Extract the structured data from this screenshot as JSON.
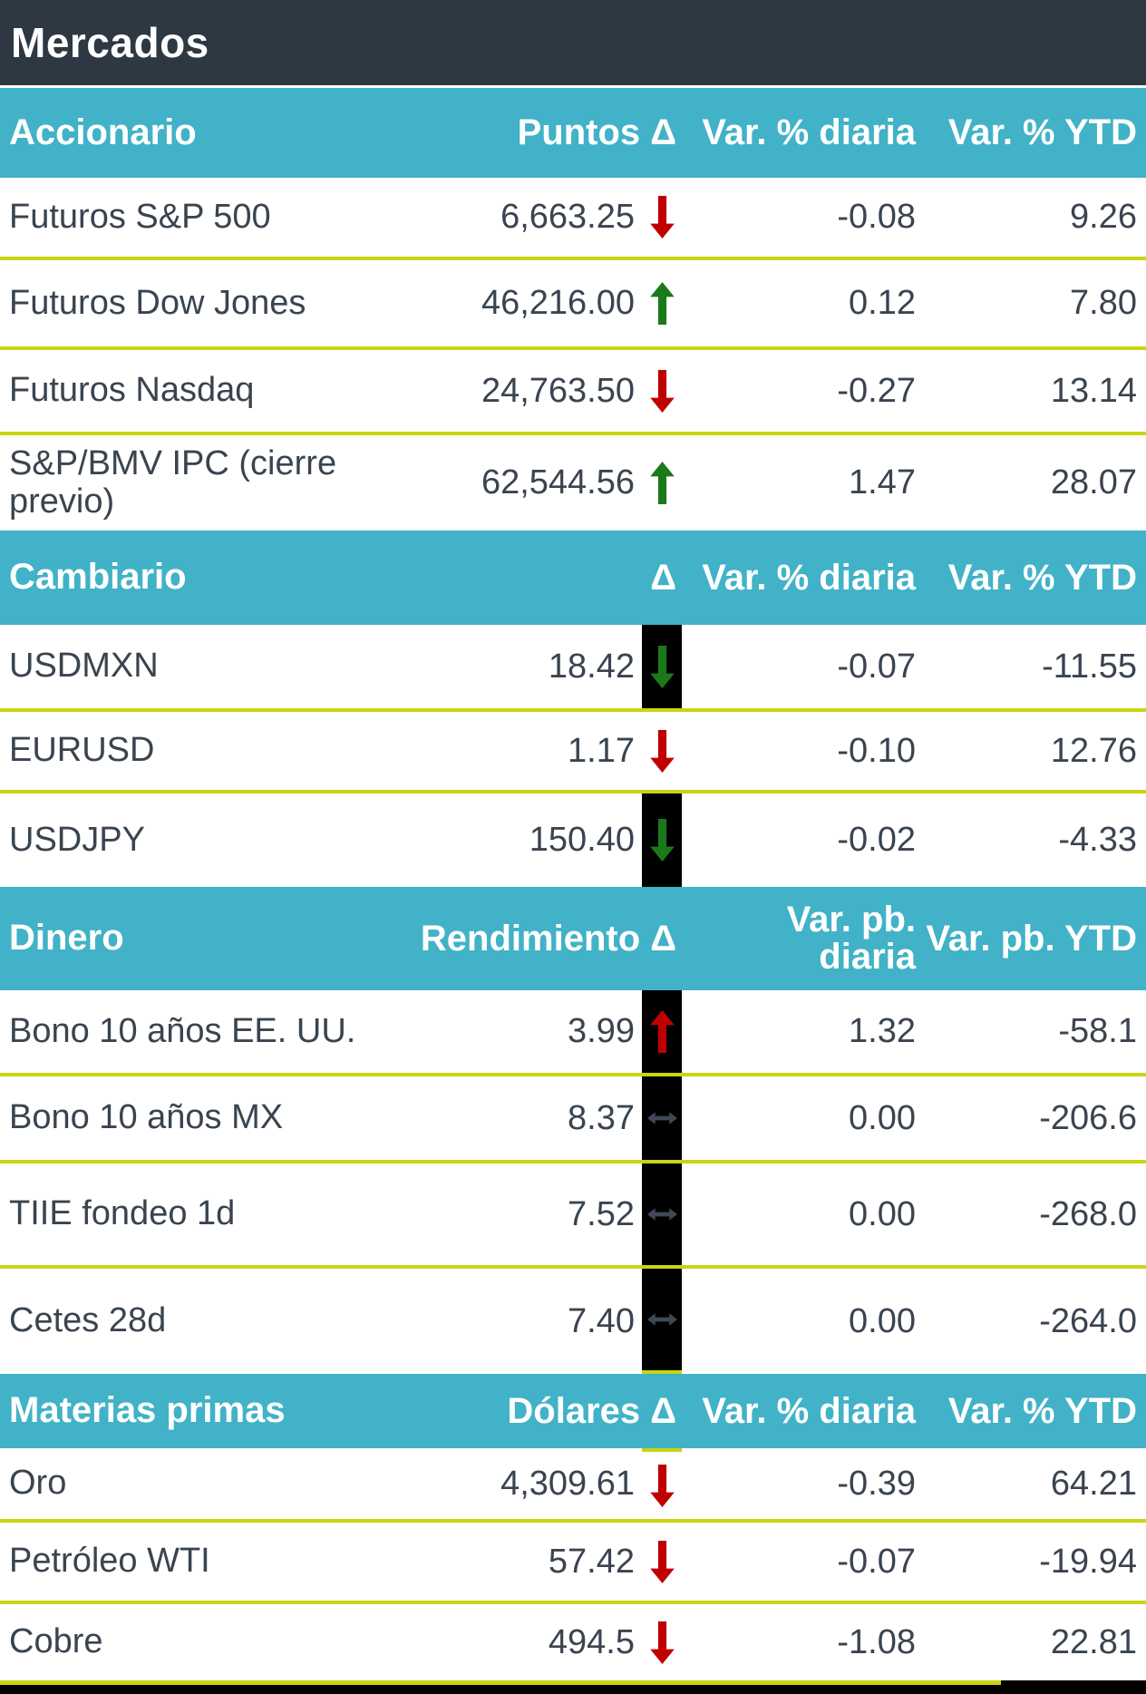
{
  "title": "Mercados",
  "colors": {
    "header_dark": "#2d3843",
    "section_teal": "#41b2c7",
    "separator": "#c9d511",
    "text": "#3a4450",
    "arrow_red": "#c00000",
    "arrow_green": "#1a7a1a",
    "arrow_flat": "#3f4a56",
    "bar_black": "#000000"
  },
  "sections": [
    {
      "title": "Accionario",
      "columns": {
        "value": "Puntos Δ",
        "daily": "Var. % diaria",
        "ytd": "Var. % YTD"
      },
      "rows": [
        {
          "name": "Futuros S&P 500",
          "value": "6,663.25",
          "daily": "-0.08",
          "ytd": "9.26",
          "delta": {
            "dir": "down",
            "tone": "red",
            "bar": false
          }
        },
        {
          "name": "Futuros Dow Jones",
          "value": "46,216.00",
          "daily": "0.12",
          "ytd": "7.80",
          "delta": {
            "dir": "up",
            "tone": "green",
            "bar": false
          }
        },
        {
          "name": "Futuros Nasdaq",
          "value": "24,763.50",
          "daily": "-0.27",
          "ytd": "13.14",
          "delta": {
            "dir": "down",
            "tone": "red",
            "bar": false
          }
        },
        {
          "name": "S&P/BMV IPC (cierre previo)",
          "value": "62,544.56",
          "daily": "1.47",
          "ytd": "28.07",
          "delta": {
            "dir": "up",
            "tone": "green",
            "bar": false
          }
        }
      ]
    },
    {
      "title": "Cambiario",
      "columns": {
        "value": "Δ",
        "daily": "Var. % diaria",
        "ytd": "Var. % YTD"
      },
      "rows": [
        {
          "name": "USDMXN",
          "value": "18.42",
          "daily": "-0.07",
          "ytd": "-11.55",
          "delta": {
            "dir": "down",
            "tone": "green",
            "bar": true
          }
        },
        {
          "name": "EURUSD",
          "value": "1.17",
          "daily": "-0.10",
          "ytd": "12.76",
          "delta": {
            "dir": "down",
            "tone": "red",
            "bar": false
          }
        },
        {
          "name": "USDJPY",
          "value": "150.40",
          "daily": "-0.02",
          "ytd": "-4.33",
          "delta": {
            "dir": "down",
            "tone": "green",
            "bar": true
          }
        }
      ]
    },
    {
      "title": "Dinero",
      "columns": {
        "value": "Rendimiento Δ",
        "daily": "Var. pb. diaria",
        "ytd": "Var. pb. YTD"
      },
      "rows": [
        {
          "name": "Bono 10 años EE. UU.",
          "value": "3.99",
          "daily": "1.32",
          "ytd": "-58.1",
          "delta": {
            "dir": "up",
            "tone": "red",
            "bar": true
          }
        },
        {
          "name": "Bono 10 años MX",
          "value": "8.37",
          "daily": "0.00",
          "ytd": "-206.6",
          "delta": {
            "dir": "flat",
            "tone": "slate",
            "bar": true
          }
        },
        {
          "name": "TIIE fondeo 1d",
          "value": "7.52",
          "daily": "0.00",
          "ytd": "-268.0",
          "delta": {
            "dir": "flat",
            "tone": "slate",
            "bar": true
          }
        },
        {
          "name": "Cetes 28d",
          "value": "7.40",
          "daily": "0.00",
          "ytd": "-264.0",
          "delta": {
            "dir": "flat",
            "tone": "slate",
            "bar": true,
            "dash": "bottom"
          }
        }
      ]
    },
    {
      "title": "Materias primas",
      "columns": {
        "value": "Dólares Δ",
        "daily": "Var. % diaria",
        "ytd": "Var. % YTD"
      },
      "rows": [
        {
          "name": "Oro",
          "value": "4,309.61",
          "daily": "-0.39",
          "ytd": "64.21",
          "delta": {
            "dir": "down",
            "tone": "red",
            "bar": false,
            "dash": "top"
          }
        },
        {
          "name": "Petróleo WTI",
          "value": "57.42",
          "daily": "-0.07",
          "ytd": "-19.94",
          "delta": {
            "dir": "down",
            "tone": "red",
            "bar": false
          }
        },
        {
          "name": "Cobre",
          "value": "494.5",
          "daily": "-1.08",
          "ytd": "22.81",
          "delta": {
            "dir": "down",
            "tone": "red",
            "bar": false
          }
        }
      ]
    }
  ]
}
